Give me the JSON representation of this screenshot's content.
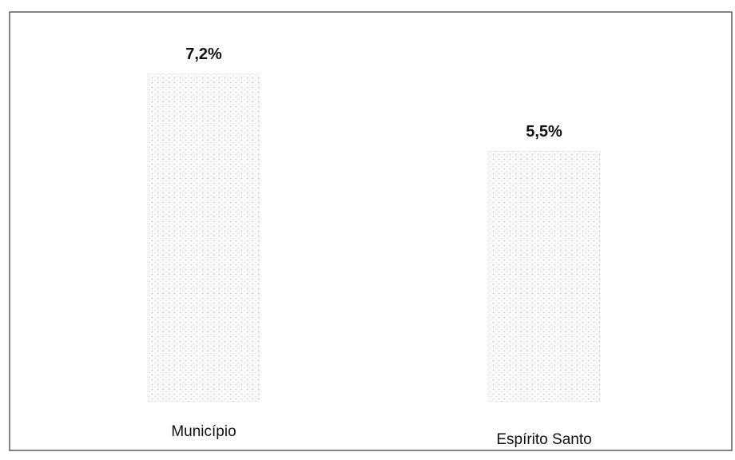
{
  "chart_data": {
    "type": "bar",
    "categories": [
      "Município",
      "Espírito Santo"
    ],
    "values": [
      7.2,
      5.5
    ],
    "value_labels": [
      "7,2%",
      "5,5%"
    ],
    "color": "#c8c8c8",
    "ylim": [
      0,
      8
    ]
  }
}
